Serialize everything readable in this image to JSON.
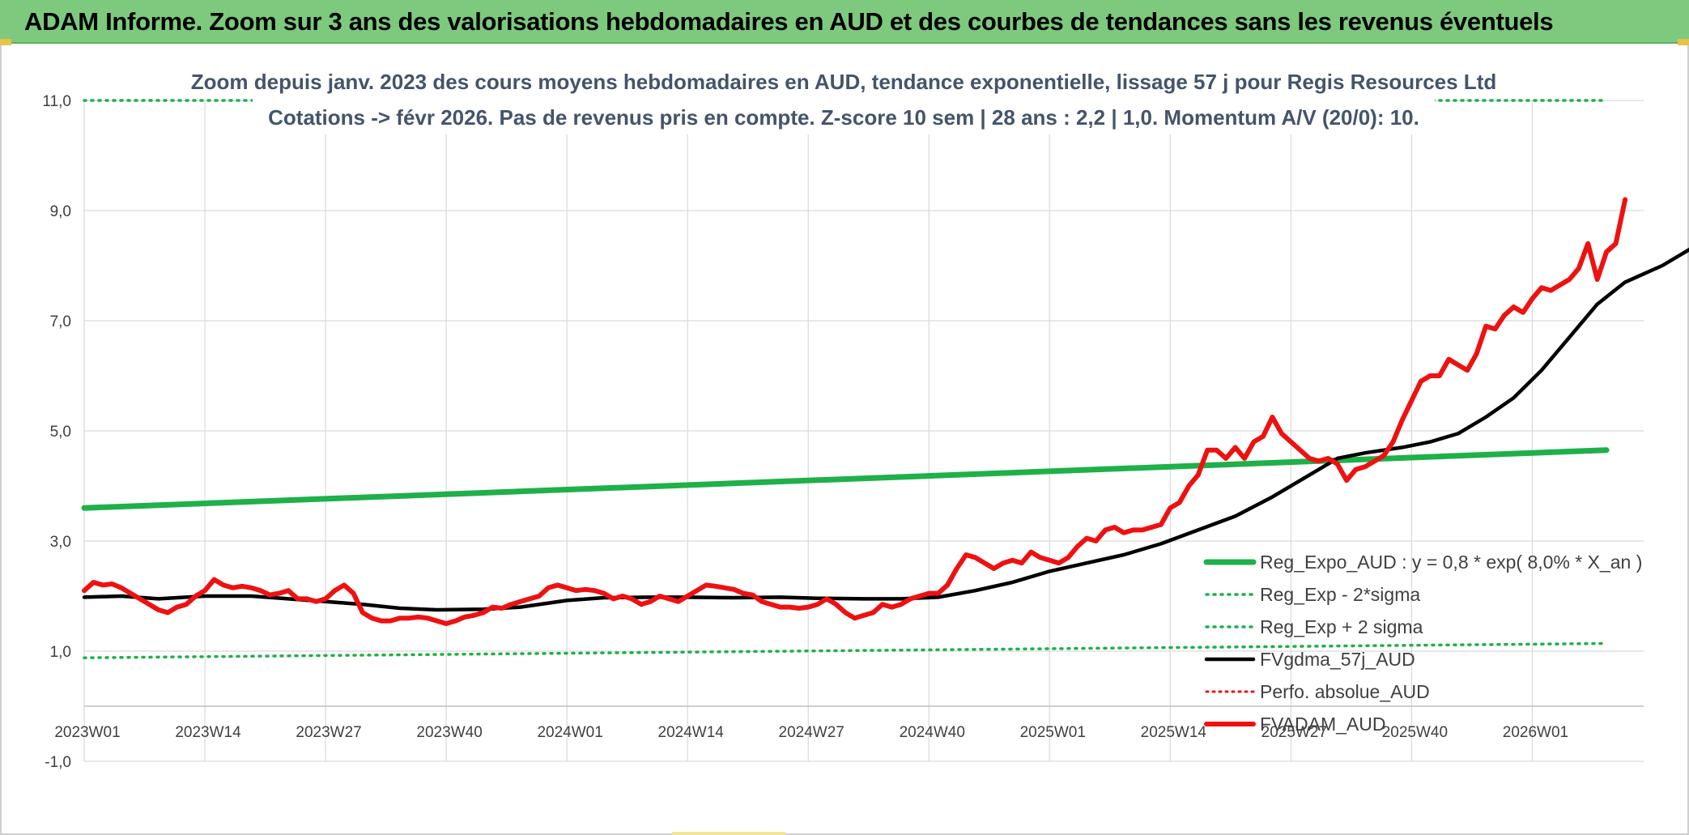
{
  "banner": {
    "title": "ADAM Informe. Zoom sur 3 ans des valorisations hebdomadaires en AUD et des courbes de tendances sans les revenus éventuels"
  },
  "colors": {
    "banner_bg": "#7dc97d",
    "reg_expo": "#1fb04a",
    "fvgdma": "#000000",
    "fvadam": "#ee1111",
    "perfo": "#ee1111",
    "subtitle": "#44546a"
  },
  "chart_data": {
    "type": "line",
    "title": "",
    "subtitle_lines": [
      "Zoom depuis janv. 2023 des cours moyens hebdomadaires en AUD, tendance exponentielle, lissage 57 j pour Regis Resources Ltd",
      "Cotations -> févr 2026. Pas de revenus pris en compte. Z-score 10 sem | 28 ans : 2,2 | 1,0. Momentum A/V (20/0): 10."
    ],
    "xlabel": "",
    "ylabel": "",
    "ylim": [
      -1,
      11
    ],
    "y_ticks": [
      "-1,0",
      "1,0",
      "3,0",
      "5,0",
      "7,0",
      "9,0",
      "11,0"
    ],
    "x_tick_labels": [
      "2023W01",
      "2023W14",
      "2023W27",
      "2023W40",
      "2024W01",
      "2024W14",
      "2024W27",
      "2024W40",
      "2025W01",
      "2025W14",
      "2025W27",
      "2025W40",
      "2026W01"
    ],
    "x_weeks": 165,
    "grid": true,
    "legend_position": "bottom-right",
    "series": [
      {
        "name": "Reg_Expo_AUD : y = 0,8 * exp( 8,0% *  X_an )",
        "style": "solid-thick",
        "points": [
          [
            0,
            3.6
          ],
          [
            164,
            4.65
          ]
        ]
      },
      {
        "name": "Reg_Exp - 2*sigma",
        "style": "dotted",
        "points": [
          [
            0,
            0.88
          ],
          [
            164,
            1.14
          ]
        ]
      },
      {
        "name": "Reg_Exp + 2 sigma",
        "style": "dotted",
        "points": [
          [
            0,
            11.0
          ],
          [
            164,
            11.0
          ]
        ]
      },
      {
        "name": "FVgdma_57j_AUD",
        "style": "solid",
        "points": [
          [
            0,
            1.98
          ],
          [
            4,
            2.0
          ],
          [
            8,
            1.95
          ],
          [
            13,
            2.0
          ],
          [
            18,
            2.0
          ],
          [
            22,
            1.95
          ],
          [
            26,
            1.9
          ],
          [
            30,
            1.85
          ],
          [
            34,
            1.78
          ],
          [
            38,
            1.75
          ],
          [
            43,
            1.76
          ],
          [
            47,
            1.8
          ],
          [
            52,
            1.92
          ],
          [
            56,
            1.97
          ],
          [
            61,
            1.98
          ],
          [
            65,
            1.98
          ],
          [
            70,
            1.97
          ],
          [
            75,
            1.98
          ],
          [
            79,
            1.96
          ],
          [
            84,
            1.95
          ],
          [
            88,
            1.95
          ],
          [
            92,
            1.98
          ],
          [
            96,
            2.1
          ],
          [
            100,
            2.25
          ],
          [
            104,
            2.45
          ],
          [
            108,
            2.6
          ],
          [
            112,
            2.75
          ],
          [
            116,
            2.95
          ],
          [
            120,
            3.2
          ],
          [
            124,
            3.45
          ],
          [
            128,
            3.8
          ],
          [
            132,
            4.2
          ],
          [
            135,
            4.5
          ],
          [
            138,
            4.6
          ],
          [
            142,
            4.7
          ],
          [
            145,
            4.8
          ],
          [
            148,
            4.95
          ],
          [
            151,
            5.25
          ],
          [
            154,
            5.6
          ],
          [
            157,
            6.1
          ],
          [
            160,
            6.7
          ],
          [
            163,
            7.3
          ],
          [
            166,
            7.7
          ],
          [
            170,
            8.0
          ],
          [
            173,
            8.3
          ]
        ]
      },
      {
        "name": "Perfo. absolue_AUD",
        "style": "dotted",
        "points": []
      },
      {
        "name": "FVADAM_AUD",
        "style": "solid-thick",
        "points": [
          [
            0,
            2.1
          ],
          [
            1,
            2.25
          ],
          [
            2,
            2.2
          ],
          [
            3,
            2.22
          ],
          [
            4,
            2.15
          ],
          [
            5,
            2.05
          ],
          [
            6,
            1.95
          ],
          [
            7,
            1.85
          ],
          [
            8,
            1.75
          ],
          [
            9,
            1.7
          ],
          [
            10,
            1.8
          ],
          [
            11,
            1.85
          ],
          [
            12,
            2.0
          ],
          [
            13,
            2.1
          ],
          [
            14,
            2.3
          ],
          [
            15,
            2.2
          ],
          [
            16,
            2.15
          ],
          [
            17,
            2.18
          ],
          [
            18,
            2.15
          ],
          [
            19,
            2.1
          ],
          [
            20,
            2.02
          ],
          [
            21,
            2.05
          ],
          [
            22,
            2.1
          ],
          [
            23,
            1.95
          ],
          [
            24,
            1.95
          ],
          [
            25,
            1.9
          ],
          [
            26,
            1.95
          ],
          [
            27,
            2.1
          ],
          [
            28,
            2.2
          ],
          [
            29,
            2.05
          ],
          [
            30,
            1.7
          ],
          [
            31,
            1.6
          ],
          [
            32,
            1.55
          ],
          [
            33,
            1.55
          ],
          [
            34,
            1.6
          ],
          [
            35,
            1.6
          ],
          [
            36,
            1.62
          ],
          [
            37,
            1.6
          ],
          [
            38,
            1.55
          ],
          [
            39,
            1.5
          ],
          [
            40,
            1.55
          ],
          [
            41,
            1.62
          ],
          [
            42,
            1.65
          ],
          [
            43,
            1.7
          ],
          [
            44,
            1.8
          ],
          [
            45,
            1.78
          ],
          [
            46,
            1.85
          ],
          [
            47,
            1.9
          ],
          [
            48,
            1.95
          ],
          [
            49,
            2.0
          ],
          [
            50,
            2.15
          ],
          [
            51,
            2.2
          ],
          [
            52,
            2.15
          ],
          [
            53,
            2.1
          ],
          [
            54,
            2.12
          ],
          [
            55,
            2.1
          ],
          [
            56,
            2.05
          ],
          [
            57,
            1.95
          ],
          [
            58,
            2.0
          ],
          [
            59,
            1.95
          ],
          [
            60,
            1.85
          ],
          [
            61,
            1.9
          ],
          [
            62,
            2.0
          ],
          [
            63,
            1.95
          ],
          [
            64,
            1.9
          ],
          [
            65,
            2.0
          ],
          [
            66,
            2.1
          ],
          [
            67,
            2.2
          ],
          [
            68,
            2.18
          ],
          [
            69,
            2.15
          ],
          [
            70,
            2.12
          ],
          [
            71,
            2.05
          ],
          [
            72,
            2.02
          ],
          [
            73,
            1.9
          ],
          [
            74,
            1.85
          ],
          [
            75,
            1.8
          ],
          [
            76,
            1.8
          ],
          [
            77,
            1.78
          ],
          [
            78,
            1.8
          ],
          [
            79,
            1.85
          ],
          [
            80,
            1.95
          ],
          [
            81,
            1.85
          ],
          [
            82,
            1.7
          ],
          [
            83,
            1.6
          ],
          [
            84,
            1.65
          ],
          [
            85,
            1.7
          ],
          [
            86,
            1.85
          ],
          [
            87,
            1.8
          ],
          [
            88,
            1.85
          ],
          [
            89,
            1.95
          ],
          [
            90,
            2.0
          ],
          [
            91,
            2.05
          ],
          [
            92,
            2.05
          ],
          [
            93,
            2.2
          ],
          [
            94,
            2.5
          ],
          [
            95,
            2.75
          ],
          [
            96,
            2.7
          ],
          [
            97,
            2.6
          ],
          [
            98,
            2.5
          ],
          [
            99,
            2.6
          ],
          [
            100,
            2.65
          ],
          [
            101,
            2.6
          ],
          [
            102,
            2.8
          ],
          [
            103,
            2.7
          ],
          [
            104,
            2.65
          ],
          [
            105,
            2.6
          ],
          [
            106,
            2.7
          ],
          [
            107,
            2.9
          ],
          [
            108,
            3.05
          ],
          [
            109,
            3.0
          ],
          [
            110,
            3.2
          ],
          [
            111,
            3.25
          ],
          [
            112,
            3.15
          ],
          [
            113,
            3.2
          ],
          [
            114,
            3.2
          ],
          [
            115,
            3.25
          ],
          [
            116,
            3.3
          ],
          [
            117,
            3.6
          ],
          [
            118,
            3.7
          ],
          [
            119,
            4.0
          ],
          [
            120,
            4.2
          ],
          [
            121,
            4.65
          ],
          [
            122,
            4.65
          ],
          [
            123,
            4.5
          ],
          [
            124,
            4.7
          ],
          [
            125,
            4.5
          ],
          [
            126,
            4.8
          ],
          [
            127,
            4.9
          ],
          [
            128,
            5.25
          ],
          [
            129,
            4.95
          ],
          [
            130,
            4.8
          ],
          [
            131,
            4.65
          ],
          [
            132,
            4.5
          ],
          [
            133,
            4.45
          ],
          [
            134,
            4.5
          ],
          [
            135,
            4.4
          ],
          [
            136,
            4.1
          ],
          [
            137,
            4.3
          ],
          [
            138,
            4.35
          ],
          [
            139,
            4.45
          ],
          [
            140,
            4.55
          ],
          [
            141,
            4.8
          ],
          [
            142,
            5.2
          ],
          [
            143,
            5.55
          ],
          [
            144,
            5.9
          ],
          [
            145,
            6.0
          ],
          [
            146,
            6.0
          ],
          [
            147,
            6.3
          ],
          [
            148,
            6.2
          ],
          [
            149,
            6.1
          ],
          [
            150,
            6.4
          ],
          [
            151,
            6.9
          ],
          [
            152,
            6.85
          ],
          [
            153,
            7.1
          ],
          [
            154,
            7.25
          ],
          [
            155,
            7.15
          ],
          [
            156,
            7.4
          ],
          [
            157,
            7.6
          ],
          [
            158,
            7.55
          ],
          [
            159,
            7.65
          ],
          [
            160,
            7.75
          ],
          [
            161,
            7.95
          ],
          [
            162,
            8.4
          ],
          [
            163,
            7.75
          ],
          [
            164,
            8.25
          ],
          [
            165,
            8.4
          ],
          [
            166,
            9.2
          ]
        ]
      }
    ]
  }
}
